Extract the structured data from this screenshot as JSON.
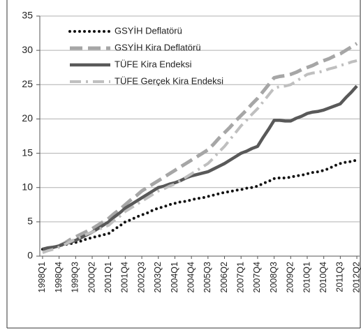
{
  "chart_data": {
    "type": "line",
    "categories": [
      "1998Q1",
      null,
      null,
      "1998Q4",
      null,
      null,
      "1999Q3",
      null,
      null,
      "2000Q2",
      null,
      null,
      "2001Q1",
      null,
      null,
      "2001Q4",
      null,
      null,
      "2002Q3",
      null,
      null,
      "2003Q2",
      null,
      null,
      "2004Q1",
      null,
      null,
      "2004Q4",
      null,
      null,
      "2005Q3",
      null,
      null,
      "2006Q2",
      null,
      null,
      "2007Q1",
      null,
      null,
      "2007Q4",
      null,
      null,
      "2008Q3",
      null,
      null,
      "2009Q2",
      null,
      null,
      "2010Q1",
      null,
      null,
      "2010Q4",
      null,
      null,
      "2011Q3",
      null,
      null,
      "2012Q2"
    ],
    "series": [
      {
        "name": "GSYİH Deflatörü",
        "color": "#111111",
        "dash": "dotted",
        "values": [
          1,
          1.2,
          1.3,
          1.5,
          1.7,
          1.8,
          2,
          2.2,
          2.5,
          2.7,
          2.9,
          3.1,
          3.3,
          3.9,
          4.4,
          5,
          5.3,
          5.7,
          6,
          6.3,
          6.7,
          7,
          7.2,
          7.5,
          7.7,
          7.9,
          8,
          8.2,
          8.4,
          8.5,
          8.7,
          8.9,
          9.1,
          9.3,
          9.4,
          9.6,
          9.7,
          9.9,
          10,
          10.2,
          10.6,
          10.9,
          11.3,
          11.4,
          11.4,
          11.5,
          11.7,
          11.8,
          12,
          12.2,
          12.3,
          12.5,
          12.8,
          13.2,
          13.5,
          13.7,
          13.8,
          14
        ]
      },
      {
        "name": "GSYİH Kira Deflatörü",
        "color": "#a6a6a6",
        "dash": "dashed",
        "values": [
          1,
          1.2,
          1.3,
          1.5,
          1.9,
          2.4,
          2.8,
          3.2,
          3.6,
          4,
          4.5,
          5,
          5.5,
          6.2,
          6.8,
          7.5,
          8.2,
          8.8,
          9.5,
          10,
          10.5,
          11,
          11.5,
          12,
          12.5,
          13,
          13.5,
          14,
          14.5,
          15,
          15.5,
          16.3,
          17.2,
          18,
          18.8,
          19.7,
          20.5,
          21.3,
          22.2,
          23,
          24,
          25,
          26,
          26.2,
          26.3,
          26.5,
          26.8,
          27.2,
          27.5,
          27.8,
          28.2,
          28.5,
          28.8,
          29.2,
          29.5,
          30,
          30.5,
          31
        ]
      },
      {
        "name": "TÜFE Kira Endeksi",
        "color": "#595959",
        "dash": "solid",
        "values": [
          1,
          1.2,
          1.3,
          1.5,
          1.8,
          2,
          2.3,
          2.7,
          3.1,
          3.5,
          4,
          4.5,
          5,
          5.7,
          6.3,
          7,
          7.5,
          8,
          8.5,
          9,
          9.5,
          10,
          10.2,
          10.5,
          10.7,
          11,
          11.4,
          11.7,
          11.9,
          12.1,
          12.3,
          12.7,
          13.1,
          13.5,
          14,
          14.5,
          15,
          15.3,
          15.7,
          16,
          17.3,
          18.5,
          19.8,
          19.8,
          19.7,
          19.7,
          20.1,
          20.4,
          20.8,
          21,
          21.1,
          21.3,
          21.6,
          21.9,
          22.2,
          23.1,
          23.9,
          24.8
        ]
      },
      {
        "name": "TÜFE Gerçek Kira Endeksi",
        "color": "#bfbfbf",
        "dash": "dashdot",
        "values": [
          0.5,
          0.8,
          1,
          1.3,
          1.7,
          2.1,
          2.5,
          2.8,
          3.2,
          3.5,
          3.8,
          4.2,
          4.5,
          5.2,
          5.8,
          6.5,
          7,
          7.5,
          8,
          8.5,
          9,
          9.5,
          9.8,
          10.2,
          10.5,
          11,
          11.5,
          12,
          12.5,
          13,
          13.5,
          14.3,
          15.2,
          16,
          17,
          18,
          19,
          19.8,
          20.7,
          21.5,
          22.5,
          23.5,
          24.5,
          24.7,
          24.8,
          25,
          25.5,
          26,
          26.5,
          26.7,
          26.8,
          27,
          27.3,
          27.5,
          27.8,
          28,
          28.3,
          28.5
        ]
      }
    ],
    "ylim": [
      0,
      35
    ],
    "yticks": [
      0,
      5,
      10,
      15,
      20,
      25,
      30,
      35
    ],
    "grid": true,
    "legend": "upper-left"
  }
}
